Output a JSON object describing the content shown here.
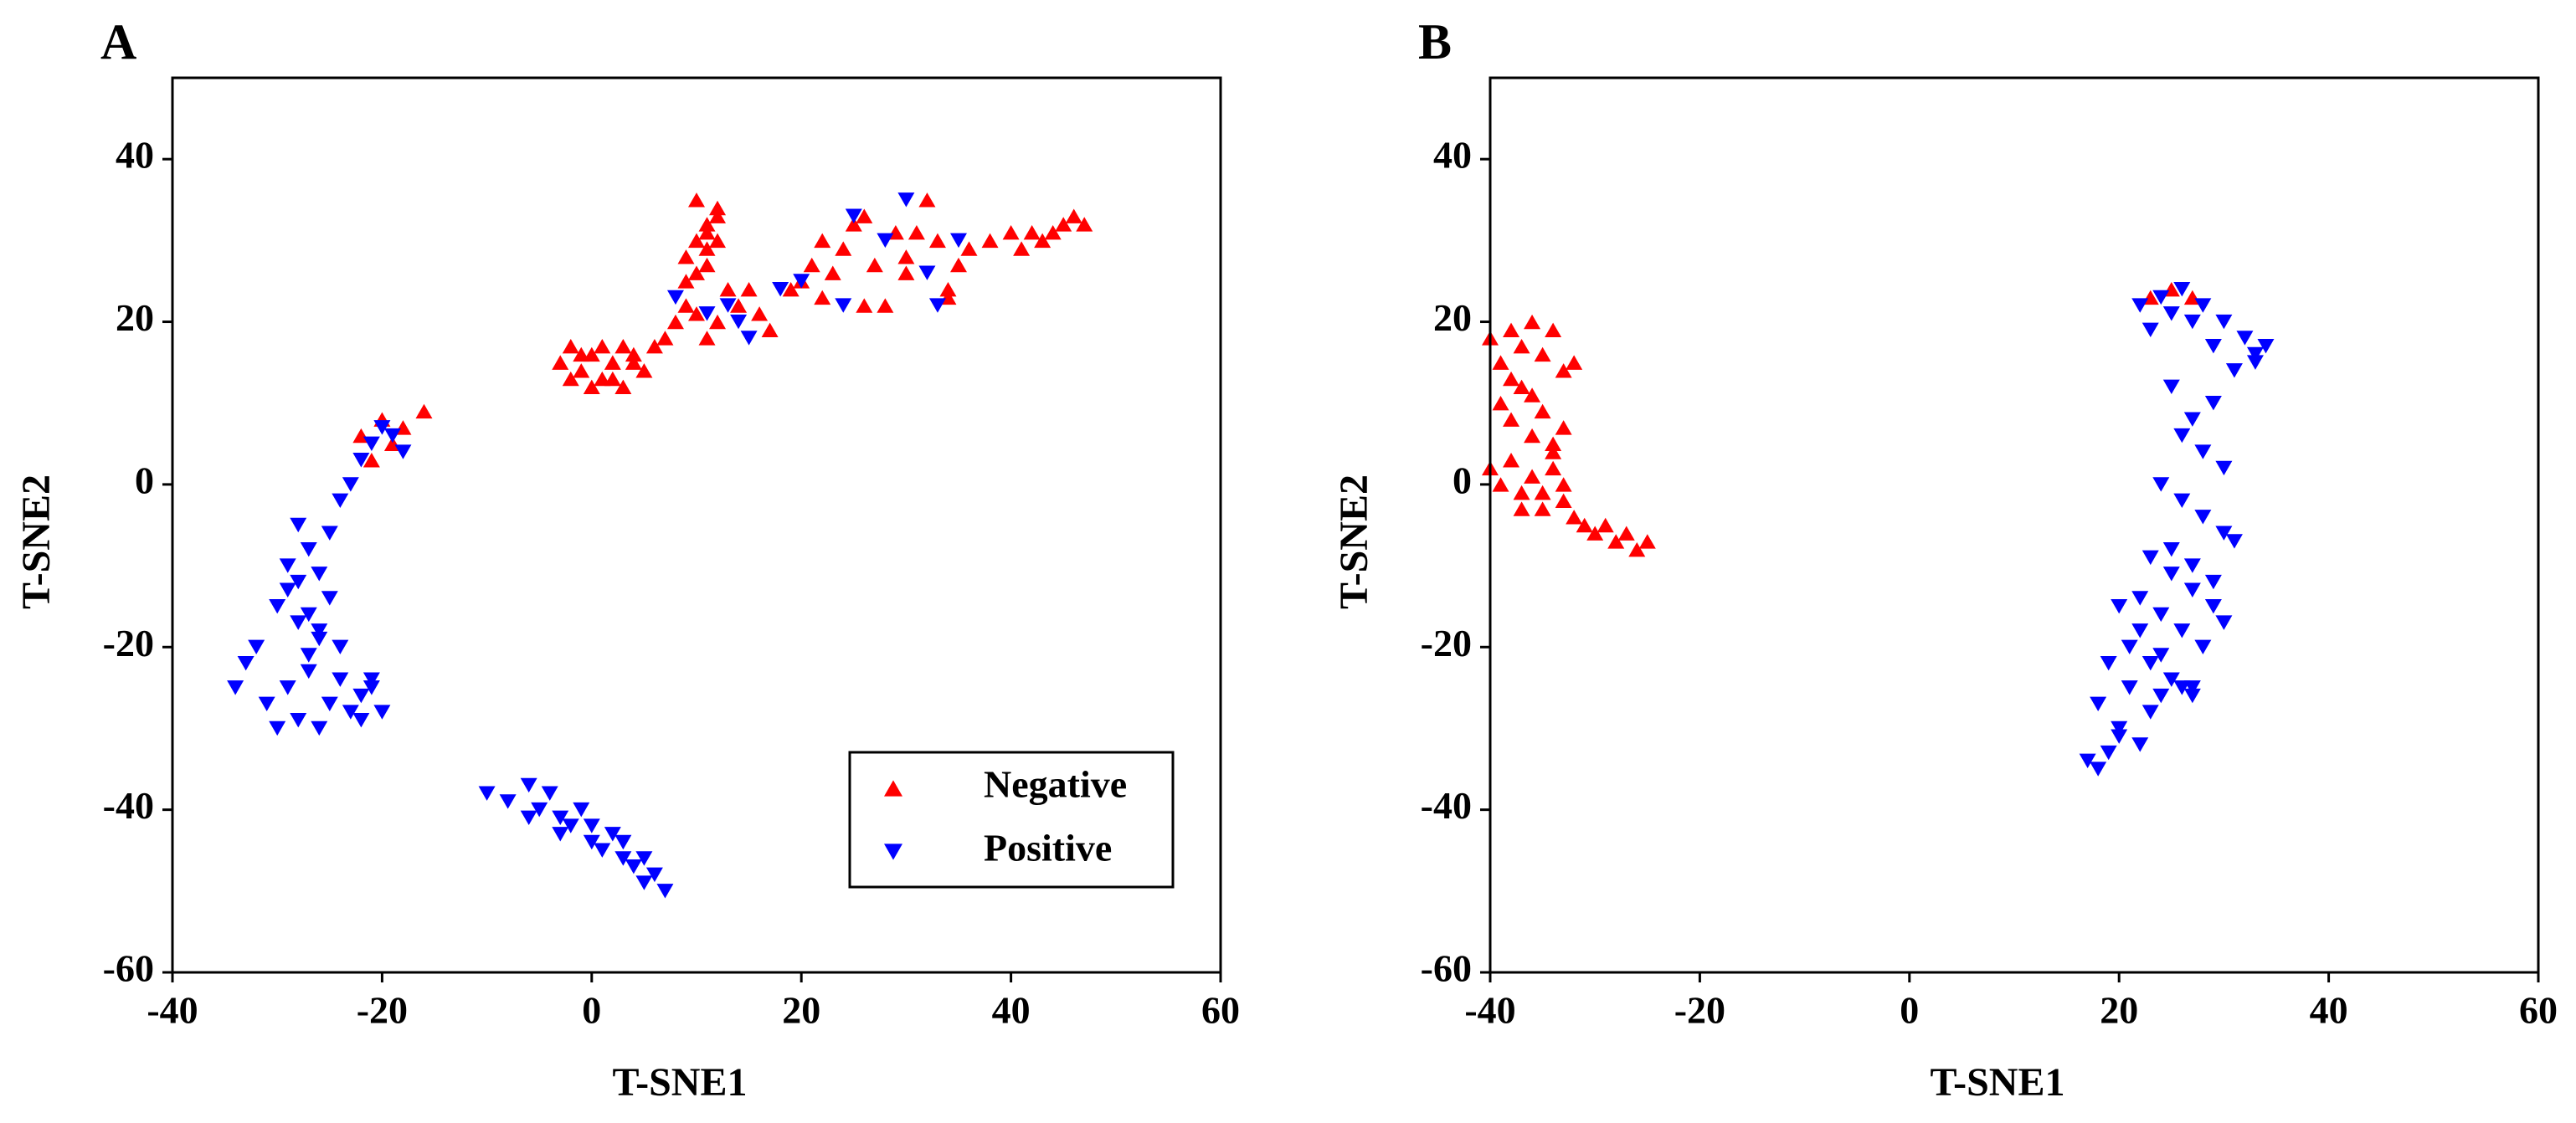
{
  "chart_data": [
    {
      "type": "scatter",
      "panel": "A",
      "xlabel": "T-SNE1",
      "ylabel": "T-SNE2",
      "xlim": [
        -40,
        60
      ],
      "ylim": [
        -60,
        50
      ],
      "xticks": [
        -40,
        -20,
        0,
        20,
        40,
        60
      ],
      "yticks": [
        -60,
        -40,
        -20,
        0,
        20,
        40
      ],
      "legend": "lower right",
      "series": [
        {
          "name": "Negative",
          "color": "#ff0000",
          "marker": "triangle-up",
          "x": [
            -3,
            -2,
            -1,
            0,
            1,
            2,
            3,
            4,
            5,
            6,
            7,
            -2,
            0,
            2,
            4,
            1,
            3,
            -1,
            9,
            10,
            11,
            12,
            10,
            11,
            12,
            9,
            10,
            11,
            12,
            11,
            8,
            9,
            10,
            12,
            13,
            14,
            16,
            17,
            19,
            20,
            21,
            22,
            23,
            24,
            25,
            26,
            27,
            28,
            29,
            30,
            31,
            32,
            33,
            34,
            35,
            36,
            38,
            40,
            41,
            42,
            43,
            44,
            45,
            46,
            47,
            22,
            26,
            30,
            34,
            11,
            15,
            -22,
            -20,
            -18,
            -16,
            -21,
            -19
          ],
          "values": [
            15,
            17,
            14,
            16,
            13,
            15,
            17,
            16,
            14,
            17,
            18,
            13,
            12,
            13,
            15,
            17,
            12,
            16,
            28,
            30,
            32,
            34,
            26,
            29,
            33,
            25,
            35,
            31,
            30,
            27,
            20,
            22,
            21,
            20,
            24,
            22,
            21,
            19,
            24,
            25,
            27,
            30,
            26,
            29,
            32,
            33,
            27,
            22,
            31,
            28,
            31,
            35,
            30,
            23,
            27,
            29,
            30,
            31,
            29,
            31,
            30,
            31,
            32,
            33,
            32,
            23,
            22,
            26,
            24,
            18,
            24,
            6,
            8,
            7,
            9,
            3,
            5
          ]
        },
        {
          "name": "Positive",
          "color": "#0000ff",
          "marker": "triangle-down",
          "x": [
            -34,
            -33,
            -32,
            -31,
            -30,
            -29,
            -28,
            -27,
            -26,
            -25,
            -24,
            -23,
            -22,
            -21,
            -20,
            -30,
            -29,
            -28,
            -27,
            -26,
            -25,
            -24,
            -28,
            -27,
            -26,
            -25,
            -24,
            -23,
            -22,
            -21,
            -20,
            -19,
            -18,
            -27,
            -26,
            -29,
            -28,
            -22,
            -21,
            -10,
            -8,
            -6,
            -5,
            -4,
            -3,
            -2,
            -1,
            0,
            1,
            2,
            3,
            4,
            5,
            6,
            7,
            -6,
            -3,
            0,
            3,
            5,
            8,
            11,
            13,
            14,
            15,
            18,
            24,
            25,
            28,
            30,
            32,
            33,
            35,
            20
          ],
          "values": [
            -25,
            -22,
            -20,
            -27,
            -30,
            -25,
            -29,
            -23,
            -30,
            -27,
            -24,
            -28,
            -29,
            -25,
            -28,
            -15,
            -10,
            -12,
            -8,
            -18,
            -14,
            -20,
            -5,
            -16,
            -11,
            -6,
            -2,
            0,
            3,
            5,
            7,
            6,
            4,
            -21,
            -19,
            -13,
            -17,
            -26,
            -24,
            -38,
            -39,
            -37,
            -40,
            -38,
            -41,
            -42,
            -40,
            -44,
            -45,
            -43,
            -46,
            -47,
            -46,
            -48,
            -50,
            -41,
            -43,
            -42,
            -44,
            -49,
            23,
            21,
            22,
            20,
            18,
            24,
            22,
            33,
            30,
            35,
            26,
            22,
            30,
            25
          ]
        }
      ]
    },
    {
      "type": "scatter",
      "panel": "B",
      "xlabel": "T-SNE1",
      "ylabel": "T-SNE2",
      "xlim": [
        -40,
        60
      ],
      "ylim": [
        -60,
        50
      ],
      "xticks": [
        -40,
        -20,
        0,
        20,
        40,
        60
      ],
      "yticks": [
        -60,
        -40,
        -20,
        0,
        20,
        40
      ],
      "series": [
        {
          "color": "#ff0000",
          "marker": "triangle-up",
          "x": [
            -40,
            -39,
            -38,
            -37,
            -36,
            -35,
            -34,
            -33,
            -32,
            -39,
            -38,
            -37,
            -36,
            -35,
            -34,
            -33,
            -40,
            -39,
            -38,
            -37,
            -36,
            -35,
            -34,
            -33,
            -32,
            -31,
            -30,
            -29,
            -28,
            -27,
            -26,
            -25,
            -38,
            -36,
            -34,
            -37,
            -35,
            -33,
            23,
            25,
            27
          ],
          "values": [
            18,
            15,
            19,
            17,
            20,
            16,
            19,
            14,
            15,
            10,
            8,
            12,
            6,
            9,
            4,
            7,
            2,
            0,
            3,
            -1,
            1,
            -3,
            2,
            -2,
            -4,
            -5,
            -6,
            -5,
            -7,
            -6,
            -8,
            -7,
            13,
            11,
            5,
            -3,
            -1,
            0,
            23,
            24,
            23
          ]
        },
        {
          "color": "#0000ff",
          "marker": "triangle-down",
          "x": [
            22,
            24,
            26,
            28,
            30,
            32,
            33,
            34,
            23,
            25,
            27,
            29,
            31,
            33,
            25,
            27,
            29,
            26,
            28,
            30,
            24,
            26,
            28,
            30,
            25,
            27,
            29,
            31,
            23,
            25,
            27,
            29,
            22,
            24,
            26,
            28,
            30,
            21,
            23,
            25,
            27,
            20,
            22,
            24,
            26,
            19,
            21,
            23,
            18,
            20,
            22,
            17,
            18,
            19,
            20,
            24,
            27
          ],
          "values": [
            22,
            23,
            24,
            22,
            20,
            18,
            15,
            17,
            19,
            21,
            20,
            17,
            14,
            16,
            12,
            8,
            10,
            6,
            4,
            2,
            0,
            -2,
            -4,
            -6,
            -8,
            -10,
            -12,
            -7,
            -9,
            -11,
            -13,
            -15,
            -14,
            -16,
            -18,
            -20,
            -17,
            -20,
            -22,
            -24,
            -26,
            -15,
            -18,
            -21,
            -25,
            -22,
            -25,
            -28,
            -27,
            -30,
            -32,
            -34,
            -35,
            -33,
            -31,
            -26,
            -25
          ]
        }
      ]
    }
  ]
}
